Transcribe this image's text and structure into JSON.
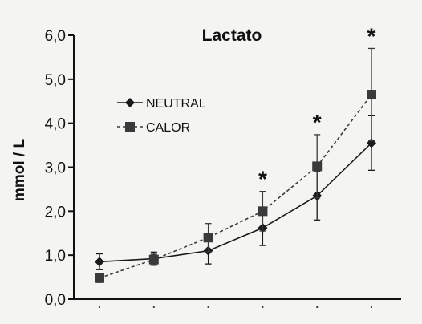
{
  "chart_data": {
    "type": "line",
    "title": "Lactato",
    "xlabel": "",
    "ylabel": "mmol / L",
    "ylim": [
      0,
      6
    ],
    "yticks": [
      "0,0",
      "1,0",
      "2,0",
      "3,0",
      "4,0",
      "5,0",
      "6,0"
    ],
    "x": [
      1,
      2,
      3,
      4,
      5,
      6
    ],
    "grid": false,
    "legend_position": "top-left",
    "series": [
      {
        "name": "NEUTRAL",
        "marker": "diamond",
        "line_style": "solid",
        "color": "#1a1a1a",
        "values": [
          0.85,
          0.92,
          1.1,
          1.62,
          2.35,
          3.55
        ],
        "error": [
          0.18,
          0.15,
          0.3,
          0.4,
          0.55,
          0.62
        ]
      },
      {
        "name": "CALOR",
        "marker": "square",
        "line_style": "dashed",
        "color": "#3a3a3a",
        "values": [
          0.48,
          0.9,
          1.4,
          2.0,
          3.02,
          4.65
        ],
        "error": [
          0.1,
          0.12,
          0.32,
          0.45,
          0.72,
          1.05
        ]
      }
    ],
    "annotations": [
      {
        "text": "*",
        "x": 4
      },
      {
        "text": "*",
        "x": 5
      },
      {
        "text": "*",
        "x": 6
      }
    ]
  }
}
